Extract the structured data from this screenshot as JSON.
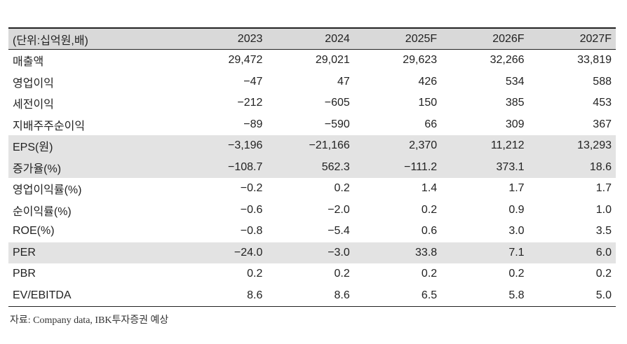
{
  "header": [
    "(단위:십억원,배)",
    "2023",
    "2024",
    "2025F",
    "2026F",
    "2027F"
  ],
  "rows": [
    {
      "label": "매출액",
      "values": [
        "29,472",
        "29,021",
        "29,623",
        "32,266",
        "33,819"
      ],
      "shaded": false
    },
    {
      "label": "영업이익",
      "values": [
        "−47",
        "47",
        "426",
        "534",
        "588"
      ],
      "shaded": false
    },
    {
      "label": "세전이익",
      "values": [
        "−212",
        "−605",
        "150",
        "385",
        "453"
      ],
      "shaded": false
    },
    {
      "label": "지배주주순이익",
      "values": [
        "−89",
        "−590",
        "66",
        "309",
        "367"
      ],
      "shaded": false
    },
    {
      "label": "EPS(원)",
      "values": [
        "−3,196",
        "−21,166",
        "2,370",
        "11,212",
        "13,293"
      ],
      "shaded": true
    },
    {
      "label": "증가율(%)",
      "values": [
        "−108.7",
        "562.3",
        "−111.2",
        "373.1",
        "18.6"
      ],
      "shaded": true
    },
    {
      "label": "영업이익률(%)",
      "values": [
        "−0.2",
        "0.2",
        "1.4",
        "1.7",
        "1.7"
      ],
      "shaded": false
    },
    {
      "label": "순이익률(%)",
      "values": [
        "−0.6",
        "−2.0",
        "0.2",
        "0.9",
        "1.0"
      ],
      "shaded": false
    },
    {
      "label": "ROE(%)",
      "values": [
        "−0.8",
        "−5.4",
        "0.6",
        "3.0",
        "3.5"
      ],
      "shaded": false
    },
    {
      "label": "PER",
      "values": [
        "−24.0",
        "−3.0",
        "33.8",
        "7.1",
        "6.0"
      ],
      "shaded": true
    },
    {
      "label": "PBR",
      "values": [
        "0.2",
        "0.2",
        "0.2",
        "0.2",
        "0.2"
      ],
      "shaded": false
    },
    {
      "label": "EV/EBITDA",
      "values": [
        "8.6",
        "8.6",
        "6.5",
        "5.8",
        "5.0"
      ],
      "shaded": false
    }
  ],
  "source": "자료: Company data, IBK투자증권 예상"
}
